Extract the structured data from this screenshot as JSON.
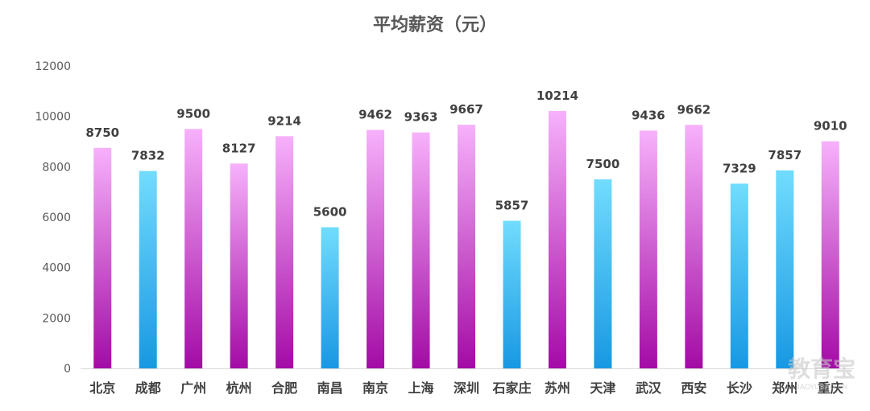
{
  "chart_data": {
    "type": "bar",
    "title": "平均薪资（元）",
    "categories": [
      "北京",
      "成都",
      "广州",
      "杭州",
      "合肥",
      "南昌",
      "南京",
      "上海",
      "深圳",
      "石家庄",
      "苏州",
      "天津",
      "武汉",
      "西安",
      "长沙",
      "郑州",
      "重庆"
    ],
    "values": [
      8750,
      7832,
      9500,
      8127,
      9214,
      5600,
      9462,
      9363,
      9667,
      5857,
      10214,
      7500,
      9436,
      9662,
      7329,
      7857,
      9010
    ],
    "bar_styles": [
      "pink",
      "blue",
      "pink",
      "pink",
      "pink",
      "blue",
      "pink",
      "pink",
      "pink",
      "blue",
      "pink",
      "blue",
      "pink",
      "pink",
      "blue",
      "blue",
      "pink"
    ],
    "ylim": [
      0,
      12000
    ],
    "yticks": [
      0,
      2000,
      4000,
      6000,
      8000,
      10000,
      12000
    ],
    "grid": false,
    "xlabel": "",
    "ylabel": ""
  },
  "colors": {
    "pink_top": "#f7b1fb",
    "pink_bottom": "#a30ba5",
    "blue_top": "#71dcfd",
    "blue_bottom": "#1898e3",
    "axis": "#d9d9d9"
  },
  "watermark": {
    "text": "教育宝",
    "subtext": "JIAOYUBAO.CN"
  }
}
